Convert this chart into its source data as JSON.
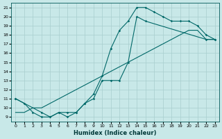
{
  "xlabel": "Humidex (Indice chaleur)",
  "bg_color": "#c8e8e8",
  "grid_color": "#a8cece",
  "line_color": "#006868",
  "xlim": [
    -0.5,
    23.5
  ],
  "ylim": [
    8.5,
    21.5
  ],
  "xticks": [
    0,
    1,
    2,
    3,
    4,
    5,
    6,
    7,
    8,
    9,
    10,
    11,
    12,
    13,
    14,
    15,
    16,
    17,
    18,
    19,
    20,
    21,
    22,
    23
  ],
  "yticks": [
    9,
    10,
    11,
    12,
    13,
    14,
    15,
    16,
    17,
    18,
    19,
    20,
    21
  ],
  "line1_x": [
    0,
    1,
    2,
    3,
    4,
    5,
    6,
    7,
    8,
    9,
    10,
    11,
    12,
    13,
    14,
    15,
    16,
    17,
    18,
    19,
    20,
    21,
    22,
    23
  ],
  "line1_y": [
    11,
    10.5,
    9.5,
    9,
    9,
    9.5,
    9.5,
    9.5,
    10.5,
    11.5,
    13.5,
    16.5,
    18.5,
    19.5,
    21,
    21,
    20.5,
    20,
    19.5,
    19.5,
    19.5,
    19,
    18,
    17.5
  ],
  "line2_x": [
    0,
    1,
    2,
    3,
    4,
    5,
    6,
    7,
    8,
    9,
    10,
    11,
    12,
    13,
    14,
    15,
    16,
    17,
    18,
    19,
    20,
    21,
    22,
    23
  ],
  "line2_y": [
    9.5,
    9.5,
    10,
    10,
    10.5,
    11,
    11.5,
    12,
    12.5,
    13,
    13.5,
    14,
    14.5,
    15,
    15.5,
    16,
    16.5,
    17,
    17.5,
    18,
    18.5,
    18.5,
    17.5,
    17.5
  ],
  "line3_x": [
    0,
    3,
    4,
    5,
    6,
    7,
    8,
    9,
    10,
    11,
    12,
    13,
    14,
    15,
    22,
    23
  ],
  "line3_y": [
    11,
    9.5,
    9.0,
    9.5,
    9.0,
    9.5,
    10.5,
    11,
    13,
    13,
    13,
    15,
    20,
    19.5,
    17.5,
    17.5
  ]
}
